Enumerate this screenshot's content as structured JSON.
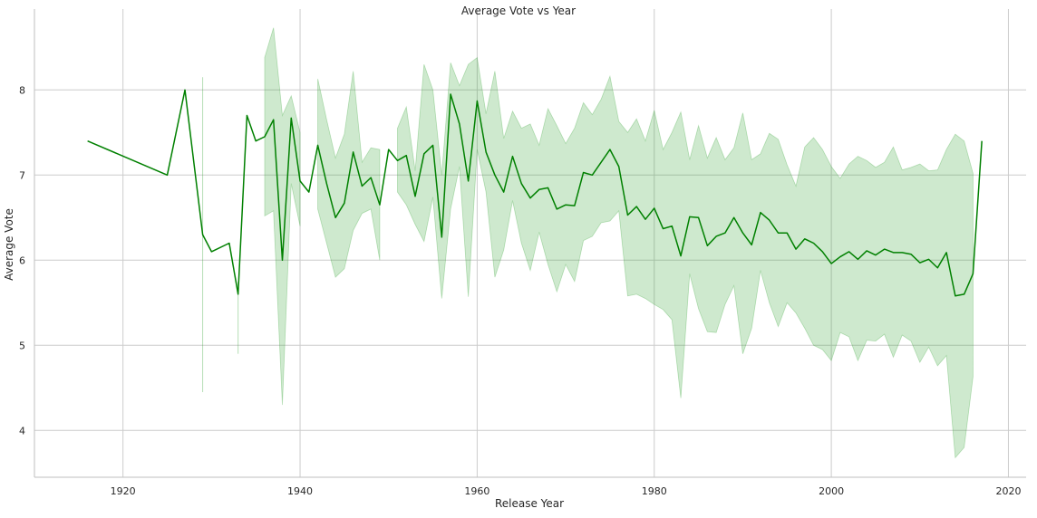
{
  "chart_data": {
    "type": "line",
    "title": "Average Vote vs Year",
    "xlabel": "Release Year",
    "ylabel": "Average Vote",
    "xlim": [
      1910,
      2022
    ],
    "ylim": [
      3.45,
      8.95
    ],
    "xticks": [
      1920,
      1940,
      1960,
      1980,
      2000,
      2020
    ],
    "yticks": [
      4,
      5,
      6,
      7,
      8
    ],
    "grid": true,
    "colors": {
      "line": "#008000",
      "band": "#2ca02c",
      "grid": "#cccccc",
      "axis": "#bfbfbf"
    },
    "series": [
      {
        "x": [
          1916,
          1925,
          1927,
          1929,
          1930,
          1932,
          1933,
          1934,
          1935,
          1936,
          1937,
          1938,
          1939,
          1940,
          1941,
          1942,
          1943,
          1944,
          1945,
          1946,
          1947,
          1948,
          1949,
          1950,
          1951,
          1952,
          1953,
          1954,
          1955,
          1956,
          1957,
          1958,
          1959,
          1960,
          1961,
          1962,
          1963,
          1964,
          1965,
          1966,
          1967,
          1968,
          1969,
          1970,
          1971,
          1972,
          1973,
          1974,
          1975,
          1976,
          1977,
          1978,
          1979,
          1980,
          1981,
          1982,
          1983,
          1984,
          1985,
          1986,
          1987,
          1988,
          1989,
          1990,
          1991,
          1992,
          1993,
          1994,
          1995,
          1996,
          1997,
          1998,
          1999,
          2000,
          2001,
          2002,
          2003,
          2004,
          2005,
          2006,
          2007,
          2008,
          2009,
          2010,
          2011,
          2012,
          2013,
          2014,
          2015,
          2016,
          2017
        ],
        "y": [
          7.4,
          7.0,
          8.0,
          6.3,
          6.1,
          6.2,
          5.6,
          7.7,
          7.4,
          7.45,
          7.65,
          6.0,
          7.67,
          6.93,
          6.8,
          7.35,
          6.9,
          6.5,
          6.67,
          7.27,
          6.87,
          6.97,
          6.65,
          7.3,
          7.17,
          7.23,
          6.75,
          7.25,
          7.35,
          6.27,
          7.95,
          7.6,
          6.93,
          7.87,
          7.27,
          7.0,
          6.8,
          7.22,
          6.9,
          6.73,
          6.83,
          6.85,
          6.6,
          6.65,
          6.64,
          7.03,
          7.0,
          7.15,
          7.3,
          7.1,
          6.53,
          6.63,
          6.48,
          6.61,
          6.37,
          6.4,
          6.05,
          6.51,
          6.5,
          6.17,
          6.28,
          6.32,
          6.5,
          6.32,
          6.18,
          6.56,
          6.47,
          6.32,
          6.32,
          6.13,
          6.25,
          6.2,
          6.1,
          5.96,
          6.04,
          6.1,
          6.01,
          6.11,
          6.06,
          6.13,
          6.09,
          6.09,
          6.07,
          5.97,
          6.01,
          5.91,
          6.09,
          5.58,
          5.6,
          5.84,
          7.4
        ],
        "ci_low": [
          null,
          null,
          null,
          null,
          null,
          null,
          null,
          null,
          null,
          6.52,
          6.58,
          4.3,
          6.9,
          6.4,
          null,
          6.6,
          6.2,
          5.8,
          5.9,
          6.35,
          6.55,
          6.6,
          6.0,
          null,
          6.8,
          6.65,
          6.42,
          6.22,
          6.74,
          5.55,
          6.6,
          7.1,
          5.57,
          7.3,
          6.8,
          5.8,
          6.12,
          6.7,
          6.2,
          5.88,
          6.33,
          5.95,
          5.63,
          5.95,
          5.75,
          6.23,
          6.28,
          6.44,
          6.46,
          6.58,
          5.58,
          5.6,
          5.55,
          5.48,
          5.42,
          5.3,
          4.38,
          5.84,
          5.43,
          5.16,
          5.15,
          5.48,
          5.7,
          4.9,
          5.2,
          5.88,
          5.5,
          5.22,
          5.5,
          5.38,
          5.2,
          5.0,
          4.95,
          4.82,
          5.15,
          5.1,
          4.82,
          5.06,
          5.05,
          5.13,
          4.86,
          5.12,
          5.05,
          4.8,
          4.98,
          4.76,
          4.88,
          3.68,
          3.8,
          4.63,
          null
        ],
        "ci_high": [
          null,
          null,
          null,
          null,
          null,
          null,
          null,
          null,
          null,
          8.38,
          8.73,
          7.7,
          7.93,
          7.5,
          null,
          8.13,
          7.65,
          7.2,
          7.48,
          8.22,
          7.15,
          7.32,
          7.3,
          null,
          7.55,
          7.8,
          7.05,
          8.3,
          8.0,
          7.0,
          8.32,
          8.05,
          8.3,
          8.38,
          7.72,
          8.22,
          7.43,
          7.75,
          7.55,
          7.6,
          7.35,
          7.78,
          7.58,
          7.37,
          7.55,
          7.85,
          7.71,
          7.89,
          8.16,
          7.63,
          7.5,
          7.66,
          7.4,
          7.76,
          7.3,
          7.5,
          7.74,
          7.18,
          7.58,
          7.2,
          7.44,
          7.18,
          7.32,
          7.73,
          7.18,
          7.25,
          7.49,
          7.42,
          7.12,
          6.87,
          7.33,
          7.44,
          7.3,
          7.1,
          6.96,
          7.13,
          7.22,
          7.17,
          7.09,
          7.15,
          7.33,
          7.06,
          7.09,
          7.13,
          7.05,
          7.06,
          7.3,
          7.48,
          7.4,
          7.02,
          null
        ],
        "spikes": [
          {
            "x": 1929,
            "low": 4.45,
            "high": 8.15
          },
          {
            "x": 1933,
            "low": 4.9,
            "high": 5.75
          }
        ]
      }
    ]
  }
}
